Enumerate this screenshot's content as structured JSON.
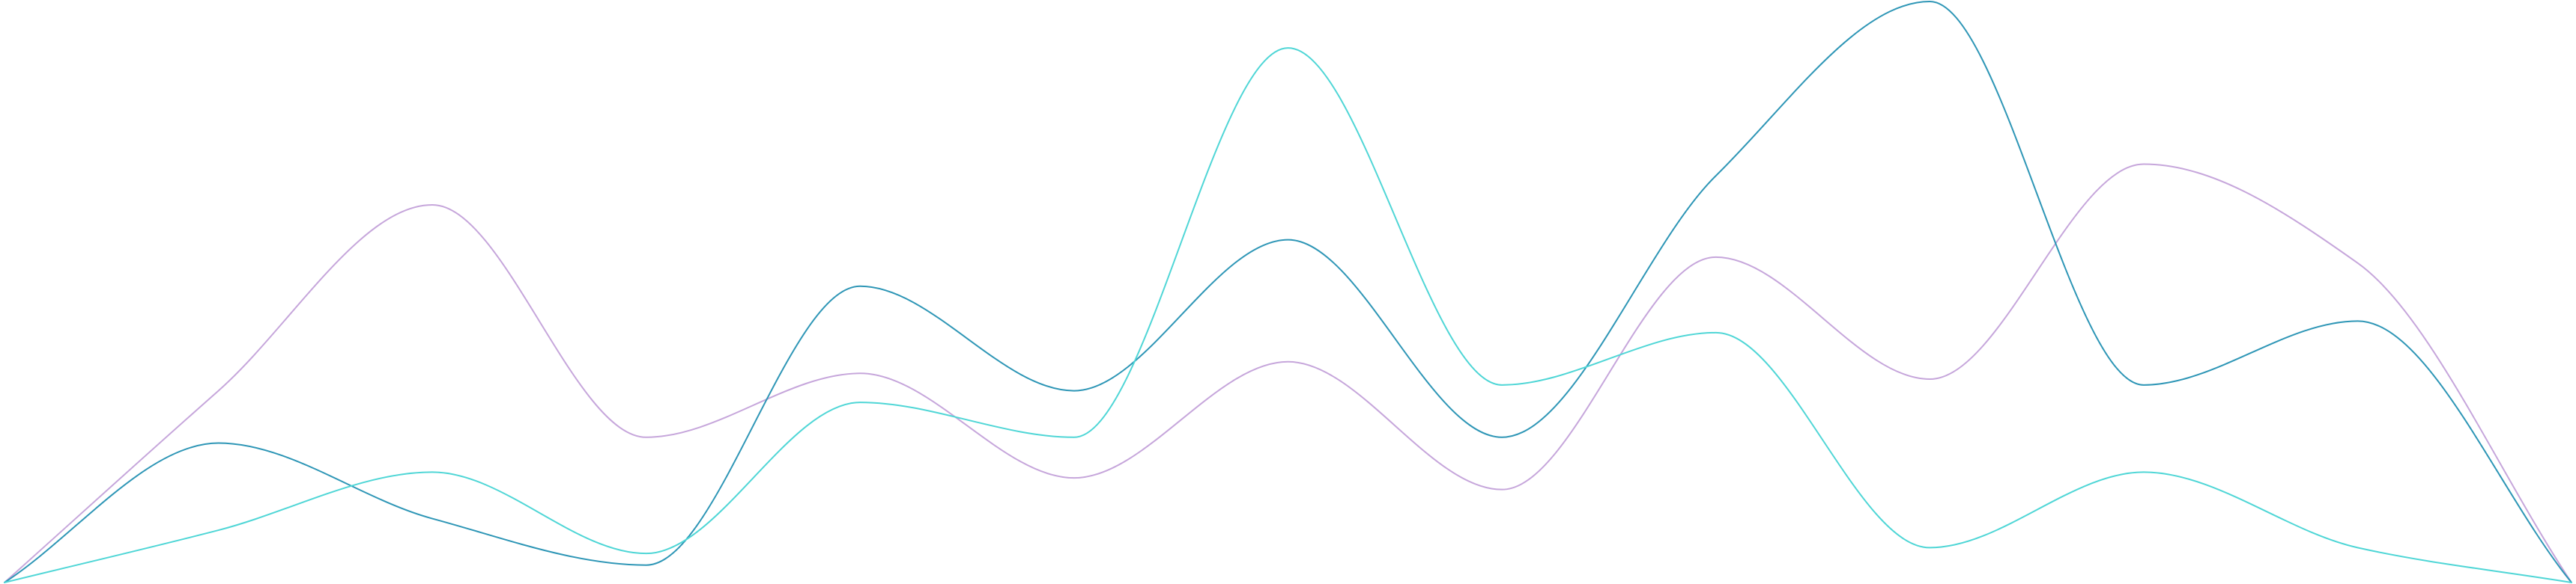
{
  "chart_data": {
    "type": "line",
    "interpolation": "smooth",
    "x": [
      0,
      1,
      2,
      3,
      4,
      5,
      6,
      7,
      8,
      9,
      10,
      11,
      12
    ],
    "xlim": [
      0,
      12
    ],
    "ylim": [
      0,
      100
    ],
    "grid": false,
    "axes_visible": false,
    "legend": "none",
    "series": [
      {
        "color": "#c6a6db",
        "values": [
          0,
          33,
          65,
          25,
          36,
          18,
          38,
          16,
          56,
          35,
          72,
          55,
          0
        ]
      },
      {
        "color": "#2e96b6",
        "values": [
          0,
          24,
          11,
          3,
          51,
          33,
          59,
          25,
          70,
          100,
          34,
          45,
          0
        ]
      },
      {
        "color": "#4fd6d6",
        "values": [
          0,
          9,
          19,
          5,
          31,
          25,
          92,
          34,
          43,
          6,
          19,
          6,
          0
        ]
      }
    ]
  }
}
